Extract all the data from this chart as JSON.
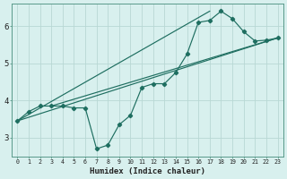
{
  "xlabel": "Humidex (Indice chaleur)",
  "bg_color": "#d8f0ee",
  "grid_color": "#b8d8d4",
  "line_color": "#1e6e60",
  "xlim": [
    -0.5,
    23.5
  ],
  "ylim": [
    2.5,
    6.6
  ],
  "xticks": [
    0,
    1,
    2,
    3,
    4,
    5,
    6,
    7,
    8,
    9,
    10,
    11,
    12,
    13,
    14,
    15,
    16,
    17,
    18,
    19,
    20,
    21,
    22,
    23
  ],
  "yticks": [
    3,
    4,
    5,
    6
  ],
  "line1_x": [
    0,
    1,
    2,
    3,
    4,
    5,
    6,
    7,
    8,
    9,
    10,
    11,
    12,
    13,
    14,
    15,
    16,
    17,
    18,
    19,
    20,
    21,
    22,
    23
  ],
  "line1_y": [
    3.45,
    3.7,
    3.85,
    3.85,
    3.85,
    3.8,
    3.8,
    2.7,
    2.8,
    3.35,
    3.6,
    4.35,
    4.45,
    4.45,
    4.75,
    5.25,
    6.1,
    6.15,
    6.4,
    6.2,
    5.85,
    5.6,
    5.62,
    5.68
  ],
  "line2_x": [
    0,
    23
  ],
  "line2_y": [
    3.45,
    5.68
  ],
  "line3_x": [
    0,
    17
  ],
  "line3_y": [
    3.45,
    6.4
  ],
  "line4_x": [
    3,
    23
  ],
  "line4_y": [
    3.85,
    5.68
  ]
}
